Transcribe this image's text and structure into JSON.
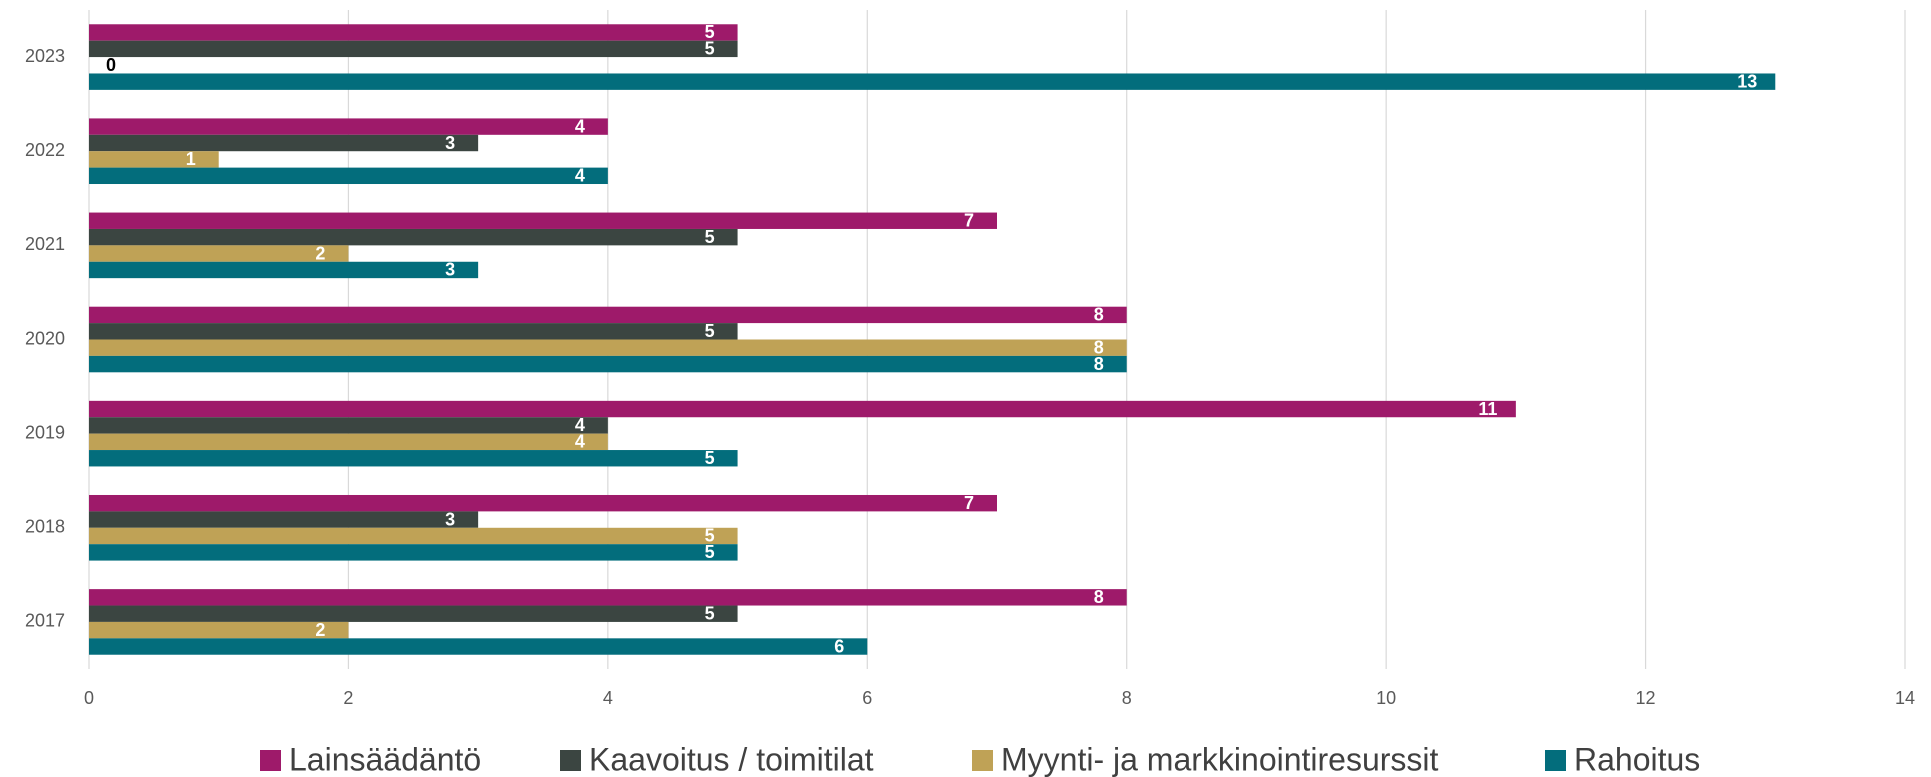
{
  "chart_data": {
    "type": "bar",
    "orientation": "horizontal",
    "categories": [
      "2017",
      "2018",
      "2019",
      "2020",
      "2021",
      "2022",
      "2023"
    ],
    "series": [
      {
        "name": "Lainsäädäntö",
        "color": "#9e1a6a",
        "values": [
          8,
          7,
          11,
          8,
          7,
          4,
          5
        ]
      },
      {
        "name": "Kaavoitus / toimitilat",
        "color": "#3b4541",
        "values": [
          5,
          3,
          4,
          5,
          5,
          3,
          5
        ]
      },
      {
        "name": "Myynti- ja markkinointiresurssit",
        "color": "#bfa256",
        "values": [
          2,
          5,
          4,
          8,
          2,
          1,
          0
        ]
      },
      {
        "name": "Rahoitus",
        "color": "#036d7c",
        "values": [
          6,
          5,
          5,
          8,
          3,
          4,
          13
        ]
      }
    ],
    "xlim": [
      0,
      14
    ],
    "xticks": [
      0,
      2,
      4,
      6,
      8,
      10,
      12,
      14
    ],
    "grid": true,
    "legend": "bottom"
  }
}
